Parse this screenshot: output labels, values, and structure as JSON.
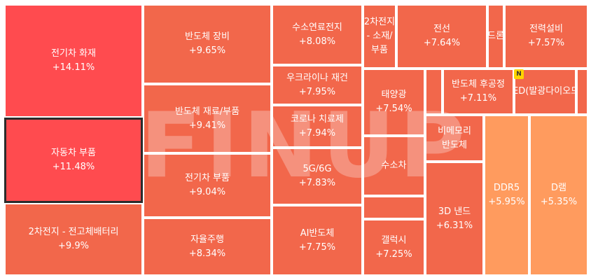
{
  "watermark": "FINUP",
  "badge": "N",
  "tiles": [
    {
      "name": "전기차 화재",
      "change": "+14.11%",
      "color": "#ff4b4f"
    },
    {
      "name": "자동차 부품",
      "change": "+11.48%",
      "color": "#ff4b4f",
      "selected": true
    },
    {
      "name": "2차전지 - 전고체배터리",
      "change": "+9.9%",
      "color": "#f2674b"
    },
    {
      "name": "반도체 장비",
      "change": "+9.65%",
      "color": "#f2674b"
    },
    {
      "name": "반도체 재료/부품",
      "change": "+9.41%",
      "color": "#f2674b"
    },
    {
      "name": "전기차 부품",
      "change": "+9.04%",
      "color": "#f2674b"
    },
    {
      "name": "자율주행",
      "change": "+8.34%",
      "color": "#f2674b"
    },
    {
      "name": "수소연료전지",
      "change": "+8.08%",
      "color": "#f2674b"
    },
    {
      "name": "우크라이나 재건",
      "change": "+7.95%",
      "color": "#f2674b"
    },
    {
      "name": "코로나 치료제",
      "change": "+7.94%",
      "color": "#f2674b"
    },
    {
      "name": "5G/6G",
      "change": "+7.83%",
      "color": "#f2674b"
    },
    {
      "name": "AI반도체",
      "change": "+7.75%",
      "color": "#f2674b"
    },
    {
      "name": "2차전지 - 소재/부품",
      "change": "",
      "color": "#f2674b"
    },
    {
      "name": "전선",
      "change": "+7.64%",
      "color": "#f2674b"
    },
    {
      "name": "드론",
      "change": "",
      "color": "#f2674b"
    },
    {
      "name": "전력설비",
      "change": "+7.57%",
      "color": "#f2674b"
    },
    {
      "name": "태양광",
      "change": "+7.54%",
      "color": "#f2674b"
    },
    {
      "name": "",
      "change": "",
      "color": "#f2674b"
    },
    {
      "name": "반도체 후공정",
      "change": "+7.11%",
      "color": "#f2674b"
    },
    {
      "name": "LED(발광다이오드)",
      "change": "",
      "color": "#f2674b"
    },
    {
      "name": "",
      "change": "",
      "color": "#f2674b"
    },
    {
      "name": "수소차",
      "change": "",
      "color": "#f2674b"
    },
    {
      "name": "비메모리 반도체",
      "change": "",
      "color": "#f2674b"
    },
    {
      "name": "",
      "change": "",
      "color": "#f2674b"
    },
    {
      "name": "3D 낸드",
      "change": "+6.31%",
      "color": "#f2674b"
    },
    {
      "name": "DDR5",
      "change": "+5.95%",
      "color": "#ff9b5e"
    },
    {
      "name": "D램",
      "change": "+5.35%",
      "color": "#ff9b5e"
    },
    {
      "name": "",
      "change": "",
      "color": "#f2674b"
    },
    {
      "name": "갤럭시",
      "change": "+7.25%",
      "color": "#f2674b"
    }
  ]
}
